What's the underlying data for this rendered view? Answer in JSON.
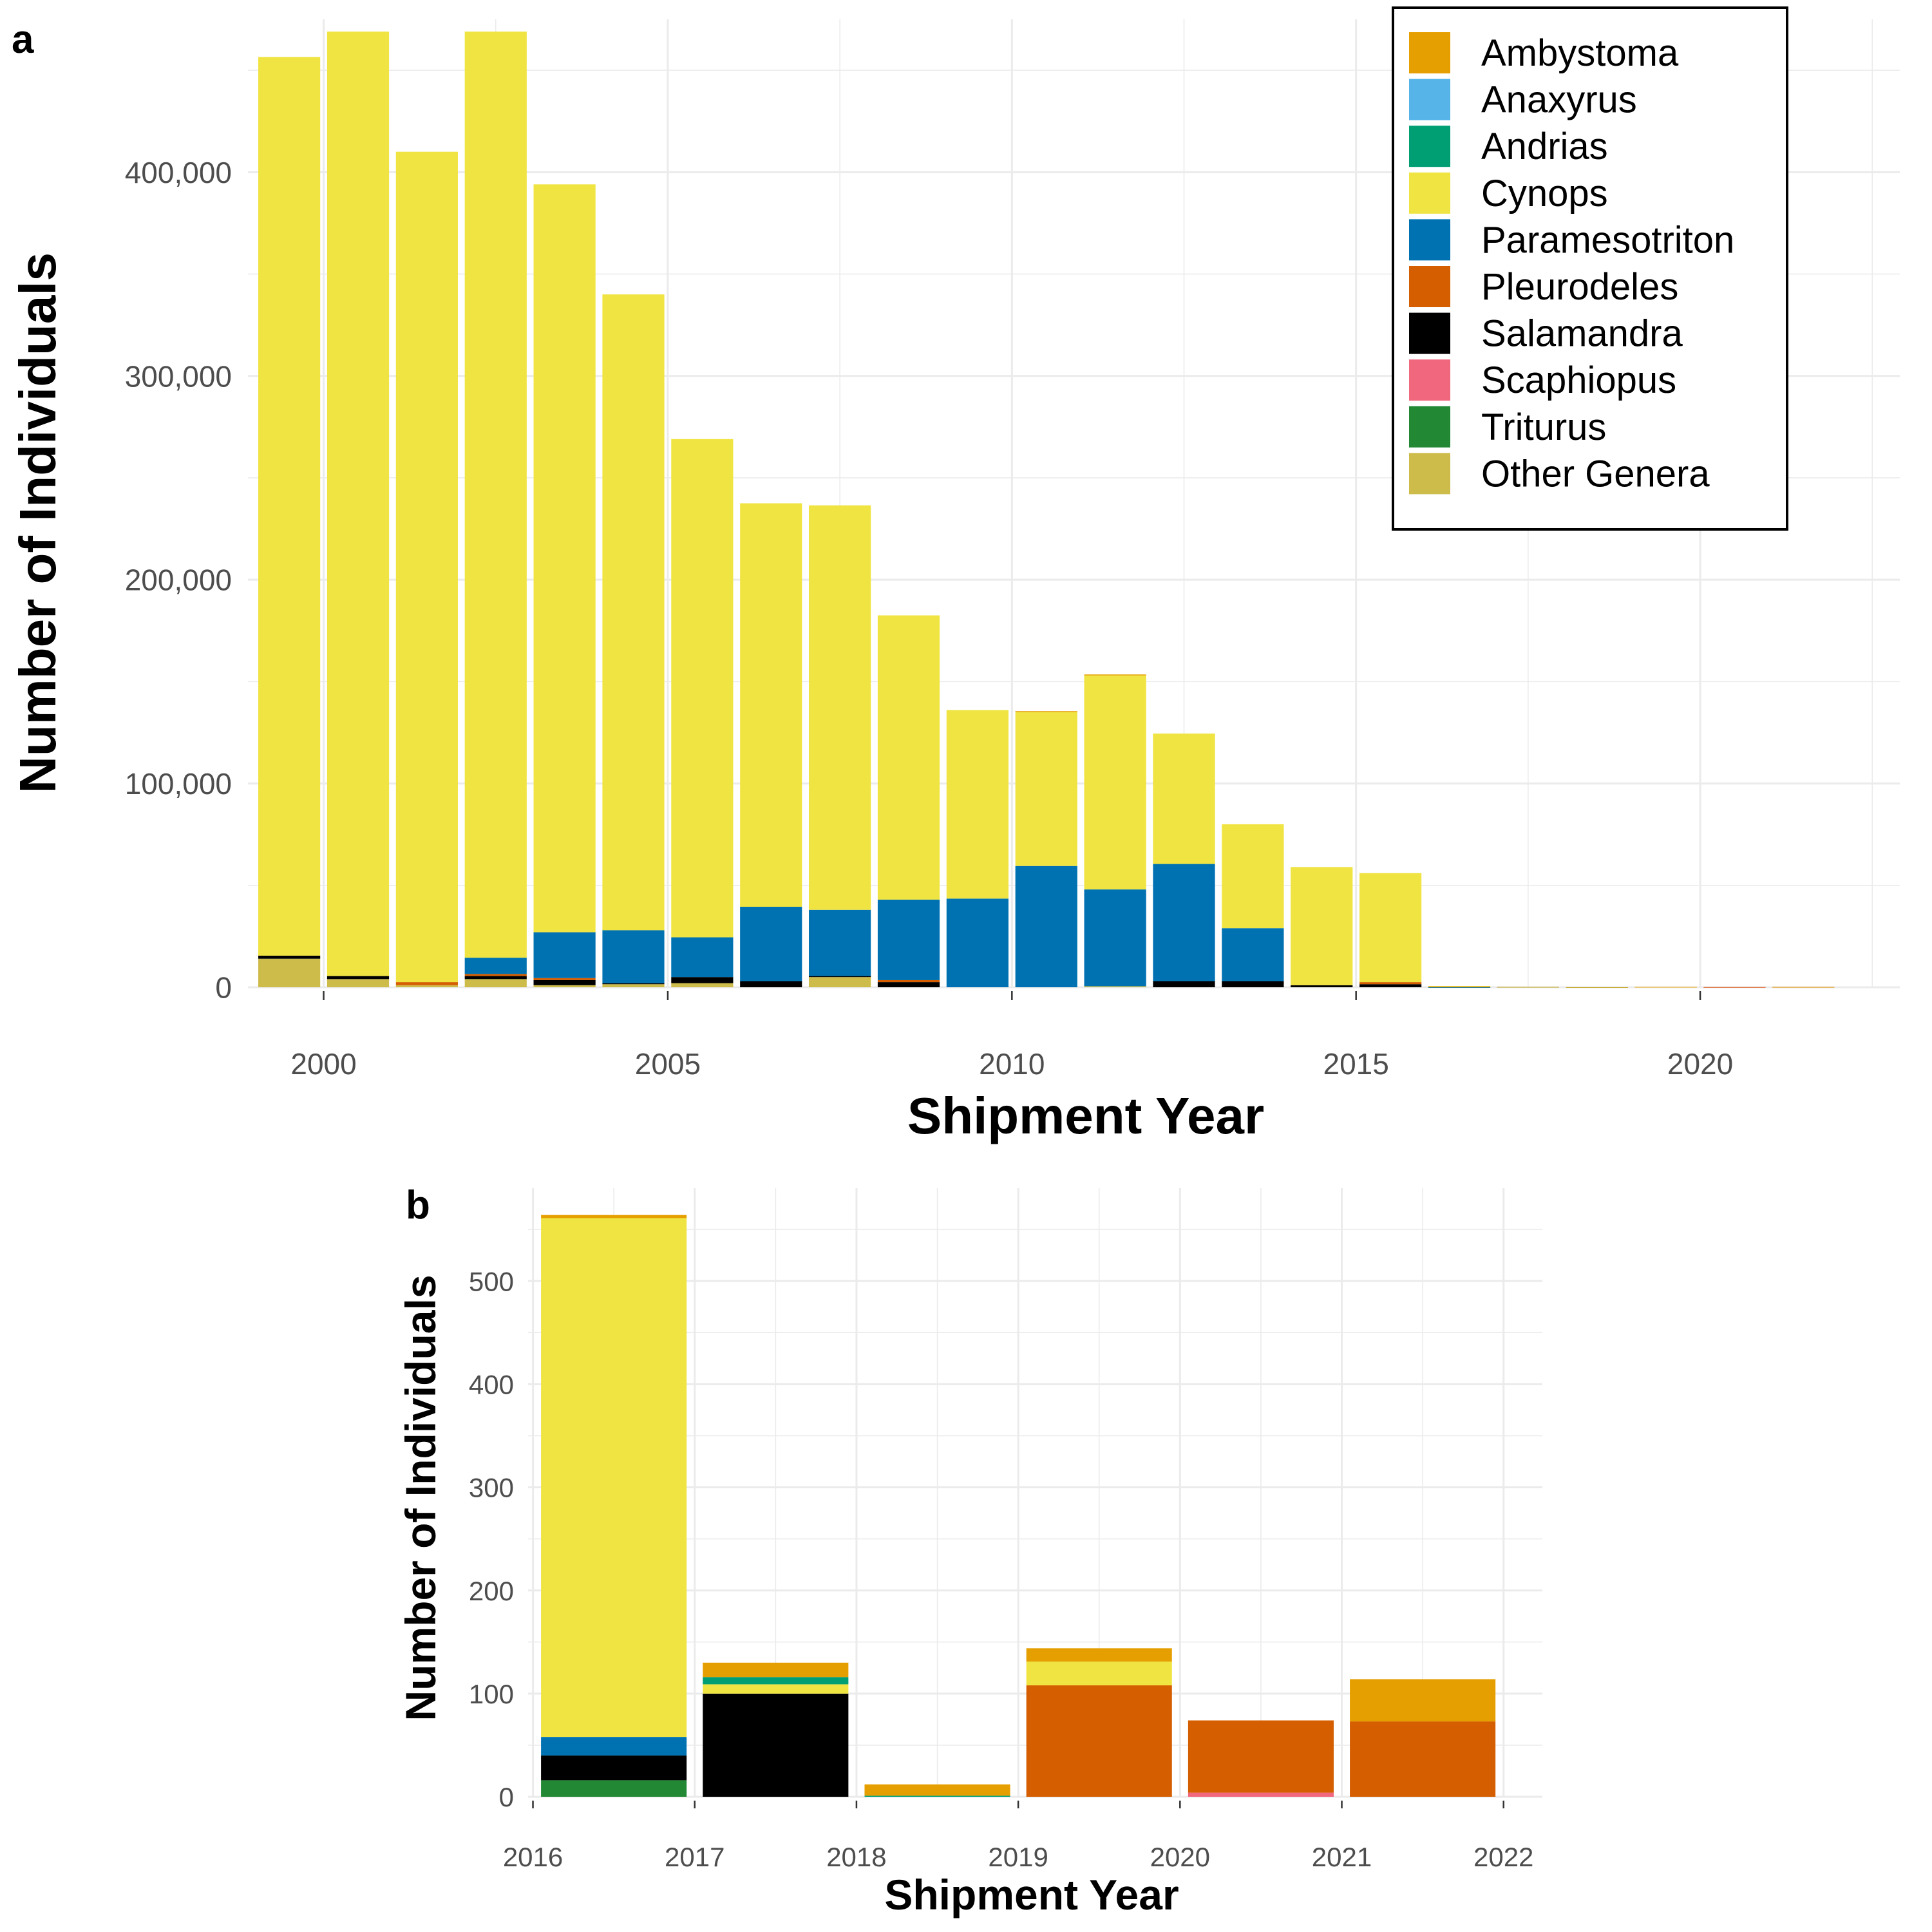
{
  "genera": [
    {
      "name": "Ambystoma",
      "color": "#E69F00"
    },
    {
      "name": "Anaxyrus",
      "color": "#56B4E9"
    },
    {
      "name": "Andrias",
      "color": "#009E73"
    },
    {
      "name": "Cynops",
      "color": "#F0E442"
    },
    {
      "name": "Paramesotriton",
      "color": "#0072B2"
    },
    {
      "name": "Pleurodeles",
      "color": "#D55E00"
    },
    {
      "name": "Salamandra",
      "color": "#000000"
    },
    {
      "name": "Scaphiopus",
      "color": "#F0677E"
    },
    {
      "name": "Triturus",
      "color": "#228833"
    },
    {
      "name": "Other Genera",
      "color": "#CDBC4A"
    }
  ],
  "chart_data": [
    {
      "panel": "a",
      "type": "bar",
      "stacked": true,
      "xlabel": "Shipment Year",
      "ylabel": "Number of Individuals",
      "xlim": [
        1998.9,
        2022.9
      ],
      "ylim": [
        0,
        475000
      ],
      "x_ticks": [
        2000,
        2005,
        2010,
        2015,
        2020
      ],
      "x_tick_labels": [
        "2000",
        "2005",
        "2010",
        "2015",
        "2020"
      ],
      "y_ticks": [
        0,
        100000,
        200000,
        300000,
        400000
      ],
      "y_tick_labels": [
        "0",
        "100,000",
        "200,000",
        "300,000",
        "400,000"
      ],
      "grid": true,
      "legend_position": "top-right",
      "stack_order": [
        "Other Genera",
        "Triturus",
        "Scaphiopus",
        "Salamandra",
        "Pleurodeles",
        "Paramesotriton",
        "Cynops",
        "Andrias",
        "Anaxyrus",
        "Ambystoma"
      ],
      "bars": [
        {
          "x": 1999.5,
          "Other Genera": 14000,
          "Salamandra": 1500,
          "Cynops": 441000
        },
        {
          "x": 2000.5,
          "Other Genera": 4000,
          "Salamandra": 1500,
          "Cynops": 463500
        },
        {
          "x": 2001.5,
          "Other Genera": 1000,
          "Pleurodeles": 1500,
          "Cynops": 407500
        },
        {
          "x": 2002.5,
          "Other Genera": 4000,
          "Salamandra": 1500,
          "Pleurodeles": 1000,
          "Paramesotriton": 8000,
          "Cynops": 454500
        },
        {
          "x": 2003.5,
          "Other Genera": 1000,
          "Salamandra": 2500,
          "Pleurodeles": 1000,
          "Paramesotriton": 22500,
          "Cynops": 367000
        },
        {
          "x": 2004.5,
          "Other Genera": 1500,
          "Salamandra": 500,
          "Paramesotriton": 26000,
          "Cynops": 312000
        },
        {
          "x": 2005.5,
          "Other Genera": 2000,
          "Salamandra": 3000,
          "Paramesotriton": 19500,
          "Cynops": 244500
        },
        {
          "x": 2006.5,
          "Salamandra": 3000,
          "Paramesotriton": 36500,
          "Cynops": 198000
        },
        {
          "x": 2007.5,
          "Other Genera": 5000,
          "Salamandra": 500,
          "Paramesotriton": 32500,
          "Cynops": 198500
        },
        {
          "x": 2008.5,
          "Salamandra": 2500,
          "Pleurodeles": 1000,
          "Paramesotriton": 39500,
          "Cynops": 139500
        },
        {
          "x": 2009.5,
          "Paramesotriton": 43500,
          "Cynops": 92500
        },
        {
          "x": 2010.5,
          "Paramesotriton": 59500,
          "Cynops": 75500,
          "Ambystoma": 500
        },
        {
          "x": 2011.5,
          "Other Genera": 500,
          "Paramesotriton": 47500,
          "Cynops": 105000,
          "Ambystoma": 500
        },
        {
          "x": 2012.5,
          "Salamandra": 3000,
          "Paramesotriton": 57500,
          "Cynops": 64000
        },
        {
          "x": 2013.5,
          "Salamandra": 3000,
          "Paramesotriton": 26000,
          "Cynops": 51000
        },
        {
          "x": 2014.5,
          "Salamandra": 1000,
          "Cynops": 58000
        },
        {
          "x": 2015.5,
          "Salamandra": 1500,
          "Pleurodeles": 1000,
          "Cynops": 53500
        },
        {
          "x": 2016.5,
          "Triturus": 16,
          "Salamandra": 24,
          "Paramesotriton": 18,
          "Cynops": 503,
          "Ambystoma": 3
        },
        {
          "x": 2017.5,
          "Salamandra": 100,
          "Cynops": 9,
          "Andrias": 7,
          "Ambystoma": 14
        },
        {
          "x": 2018.5,
          "Andrias": 1,
          "Ambystoma": 11
        },
        {
          "x": 2019.5,
          "Pleurodeles": 108,
          "Cynops": 23,
          "Ambystoma": 13
        },
        {
          "x": 2020.5,
          "Scaphiopus": 4,
          "Pleurodeles": 70
        },
        {
          "x": 2021.5,
          "Pleurodeles": 73,
          "Ambystoma": 41
        }
      ]
    },
    {
      "panel": "b",
      "type": "bar",
      "stacked": true,
      "xlabel": "Shipment Year",
      "ylabel": "Number of Individuals",
      "xlim": [
        2015.97,
        2022.24
      ],
      "ylim": [
        0,
        590
      ],
      "x_ticks": [
        2016,
        2017,
        2018,
        2019,
        2020,
        2021,
        2022
      ],
      "x_tick_labels": [
        "2016",
        "2017",
        "2018",
        "2019",
        "2020",
        "2021",
        "2022"
      ],
      "y_ticks": [
        0,
        100,
        200,
        300,
        400,
        500
      ],
      "y_tick_labels": [
        "0",
        "100",
        "200",
        "300",
        "400",
        "500"
      ],
      "grid": true,
      "stack_order": [
        "Other Genera",
        "Triturus",
        "Scaphiopus",
        "Salamandra",
        "Pleurodeles",
        "Paramesotriton",
        "Cynops",
        "Andrias",
        "Anaxyrus",
        "Ambystoma"
      ],
      "bars": [
        {
          "x": 2016.5,
          "Triturus": 16,
          "Salamandra": 24,
          "Paramesotriton": 18,
          "Cynops": 503,
          "Ambystoma": 3
        },
        {
          "x": 2017.5,
          "Salamandra": 100,
          "Cynops": 9,
          "Andrias": 7,
          "Ambystoma": 14
        },
        {
          "x": 2018.5,
          "Andrias": 1,
          "Ambystoma": 11
        },
        {
          "x": 2019.5,
          "Pleurodeles": 108,
          "Cynops": 23,
          "Ambystoma": 13
        },
        {
          "x": 2020.5,
          "Scaphiopus": 4,
          "Pleurodeles": 70
        },
        {
          "x": 2021.5,
          "Pleurodeles": 73,
          "Ambystoma": 41
        }
      ]
    }
  ],
  "labels": {
    "panel_a": "a",
    "panel_b": "b"
  }
}
